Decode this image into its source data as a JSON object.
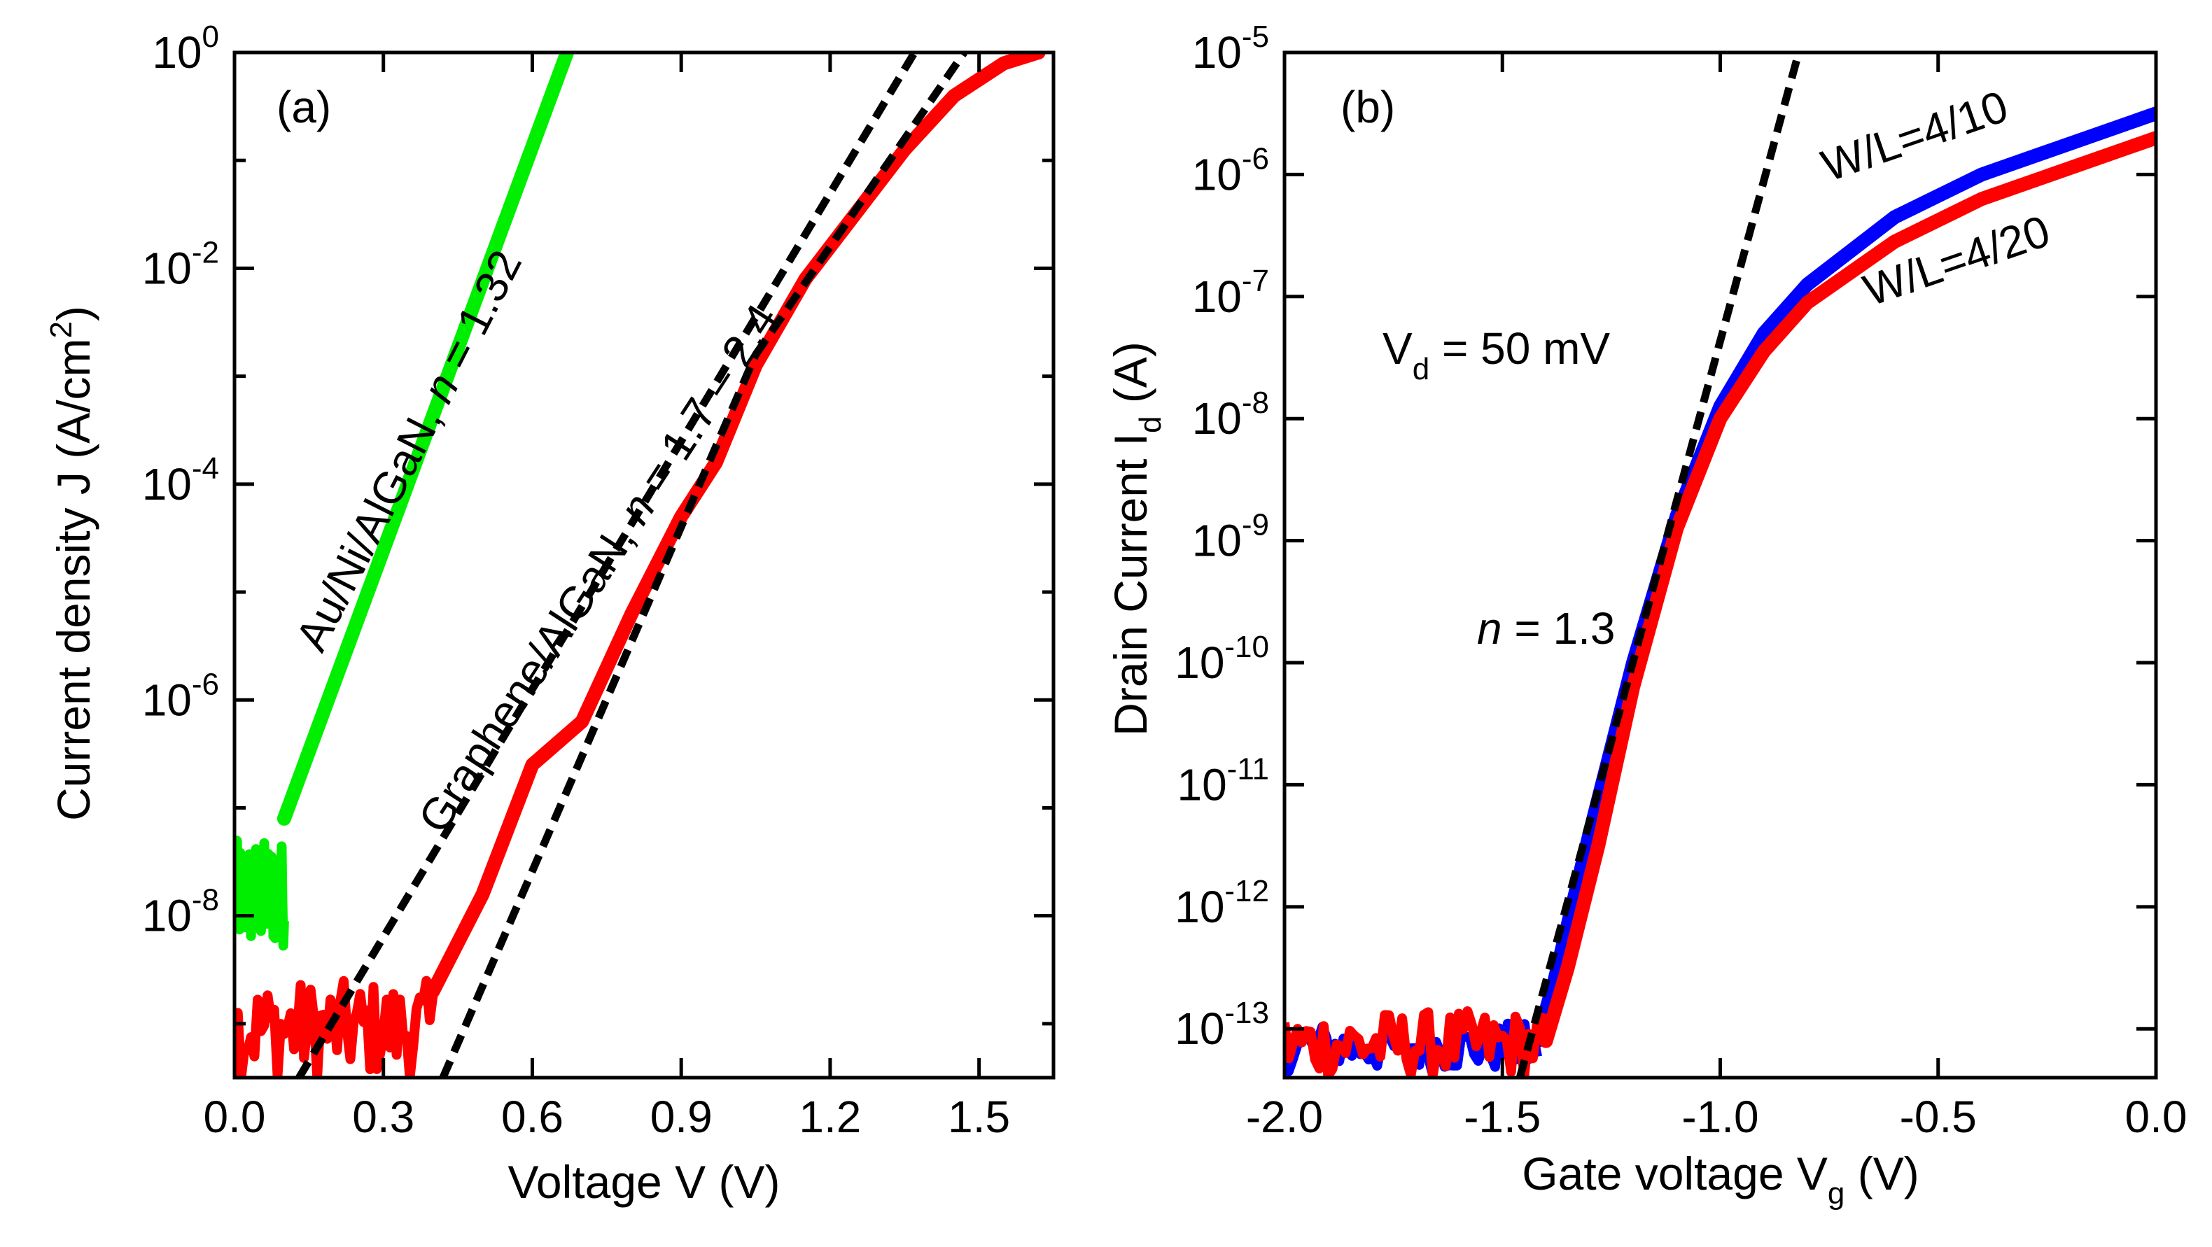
{
  "chart_data": [
    {
      "type": "line",
      "panel_label": "(a)",
      "xlabel": "Voltage V (V)",
      "ylabel": {
        "base": "Current density J (A/cm",
        "sup": "2",
        "tail": ")"
      },
      "y_scale": "log",
      "xlim": [
        0.0,
        1.65
      ],
      "ylim_log10": [
        -9.5,
        0
      ],
      "x_ticks": [
        0.0,
        0.3,
        0.6,
        0.9,
        1.2,
        1.5
      ],
      "x_tick_labels": [
        "0.0",
        "0.3",
        "0.6",
        "0.9",
        "1.2",
        "1.5"
      ],
      "y_ticks_log10": [
        0,
        -2,
        -4,
        -6,
        -8
      ],
      "y_tick_labels": [
        {
          "base": "10",
          "exp": "0"
        },
        {
          "base": "10",
          "exp": "-2"
        },
        {
          "base": "10",
          "exp": "-4"
        },
        {
          "base": "10",
          "exp": "-6"
        },
        {
          "base": "10",
          "exp": "-8"
        }
      ],
      "series": [
        {
          "name": "Au/Ni/AlGaN",
          "color": "#00ee00",
          "style": "solid",
          "noise_floor": {
            "x_range": [
              0.0,
              0.1
            ],
            "log10_range": [
              -8.3,
              -7.3
            ]
          },
          "x": [
            0.1,
            0.67
          ],
          "log10_y": [
            -7.1,
            0
          ]
        },
        {
          "name": "Graphene/AlGaN",
          "color": "#ff0000",
          "style": "solid",
          "noise_floor": {
            "x_range": [
              0.0,
              0.4
            ],
            "log10_range": [
              -9.5,
              -8.6
            ]
          },
          "x": [
            0.4,
            0.5,
            0.6,
            0.7,
            0.8,
            0.9,
            0.97,
            1.05,
            1.15,
            1.25,
            1.35,
            1.45,
            1.55,
            1.62
          ],
          "log10_y": [
            -8.7,
            -7.8,
            -6.6,
            -6.2,
            -5.2,
            -4.3,
            -3.8,
            -2.9,
            -2.1,
            -1.5,
            -0.9,
            -0.4,
            -0.1,
            0
          ]
        },
        {
          "name": "fit 1",
          "color": "#000000",
          "style": "dashed",
          "x": [
            0.13,
            1.37
          ],
          "log10_y": [
            -9.5,
            0
          ]
        },
        {
          "name": "fit 2",
          "color": "#000000",
          "style": "dashed",
          "x": [
            0.42,
            1.05
          ],
          "log10_y": [
            -9.5,
            -2.8
          ]
        },
        {
          "name": "fit 3",
          "color": "#000000",
          "style": "dashed",
          "x": [
            1.05,
            1.47
          ],
          "log10_y": [
            -2.8,
            0
          ]
        }
      ],
      "annotations": [
        {
          "text_parts": [
            "Au/Ni/AlGaN, ",
            "n",
            " = 1.32"
          ]
        },
        {
          "text_parts": [
            "Graphene/AlGaN, ",
            "n",
            " = 1.7 – 2.4"
          ]
        }
      ]
    },
    {
      "type": "line",
      "panel_label": "(b)",
      "xlabel": {
        "base": "Gate voltage V",
        "sub": "g",
        "tail": " (V)"
      },
      "ylabel": {
        "base": "Drain Current I",
        "sub": "d",
        "tail": " (A)"
      },
      "y_scale": "log",
      "xlim": [
        -2.0,
        0.0
      ],
      "ylim_log10": [
        -13.4,
        -5
      ],
      "x_ticks": [
        -2.0,
        -1.5,
        -1.0,
        -0.5,
        0.0
      ],
      "x_tick_labels": [
        "-2.0",
        "-1.5",
        "-1.0",
        "-0.5",
        "0.0"
      ],
      "y_ticks_log10": [
        -5,
        -6,
        -7,
        -8,
        -9,
        -10,
        -11,
        -12,
        -13
      ],
      "y_tick_labels": [
        {
          "base": "10",
          "exp": "-5"
        },
        {
          "base": "10",
          "exp": "-6"
        },
        {
          "base": "10",
          "exp": "-7"
        },
        {
          "base": "10",
          "exp": "-8"
        },
        {
          "base": "10",
          "exp": "-9"
        },
        {
          "base": "10",
          "exp": "-10"
        },
        {
          "base": "10",
          "exp": "-11"
        },
        {
          "base": "10",
          "exp": "-12"
        },
        {
          "base": "10",
          "exp": "-13"
        }
      ],
      "series": [
        {
          "name": "W/L=4/10",
          "color": "#0000ff",
          "style": "solid",
          "noise_floor": {
            "x_range": [
              -2.0,
              -1.42
            ],
            "log10_range": [
              -13.35,
              -12.95
            ]
          },
          "x": [
            -1.42,
            -1.38,
            -1.3,
            -1.2,
            -1.1,
            -1.0,
            -0.9,
            -0.8,
            -0.6,
            -0.4,
            -0.2,
            0.0
          ],
          "log10_y": [
            -13.1,
            -12.6,
            -11.4,
            -10.0,
            -8.8,
            -7.9,
            -7.3,
            -6.9,
            -6.35,
            -6.0,
            -5.75,
            -5.5
          ]
        },
        {
          "name": "W/L=4/20",
          "color": "#ff0000",
          "style": "solid",
          "noise_floor": {
            "x_range": [
              -2.0,
              -1.4
            ],
            "log10_range": [
              -13.4,
              -12.85
            ]
          },
          "x": [
            -1.4,
            -1.35,
            -1.28,
            -1.2,
            -1.1,
            -1.0,
            -0.9,
            -0.8,
            -0.6,
            -0.4,
            -0.2,
            0.0
          ],
          "log10_y": [
            -13.1,
            -12.5,
            -11.5,
            -10.2,
            -8.9,
            -8.0,
            -7.45,
            -7.05,
            -6.55,
            -6.2,
            -5.95,
            -5.7
          ]
        },
        {
          "name": "fit n = 1.3",
          "color": "#000000",
          "style": "dashed",
          "x": [
            -1.46,
            -0.82
          ],
          "log10_y": [
            -13.4,
            -5
          ]
        }
      ],
      "annotations": [
        {
          "text_parts": [
            "V",
            "d",
            " = 50 mV"
          ]
        },
        {
          "text_parts": [
            "n",
            " = 1.3"
          ]
        },
        {
          "text": "W/L=4/10"
        },
        {
          "text": "W/L=4/20"
        }
      ]
    }
  ]
}
